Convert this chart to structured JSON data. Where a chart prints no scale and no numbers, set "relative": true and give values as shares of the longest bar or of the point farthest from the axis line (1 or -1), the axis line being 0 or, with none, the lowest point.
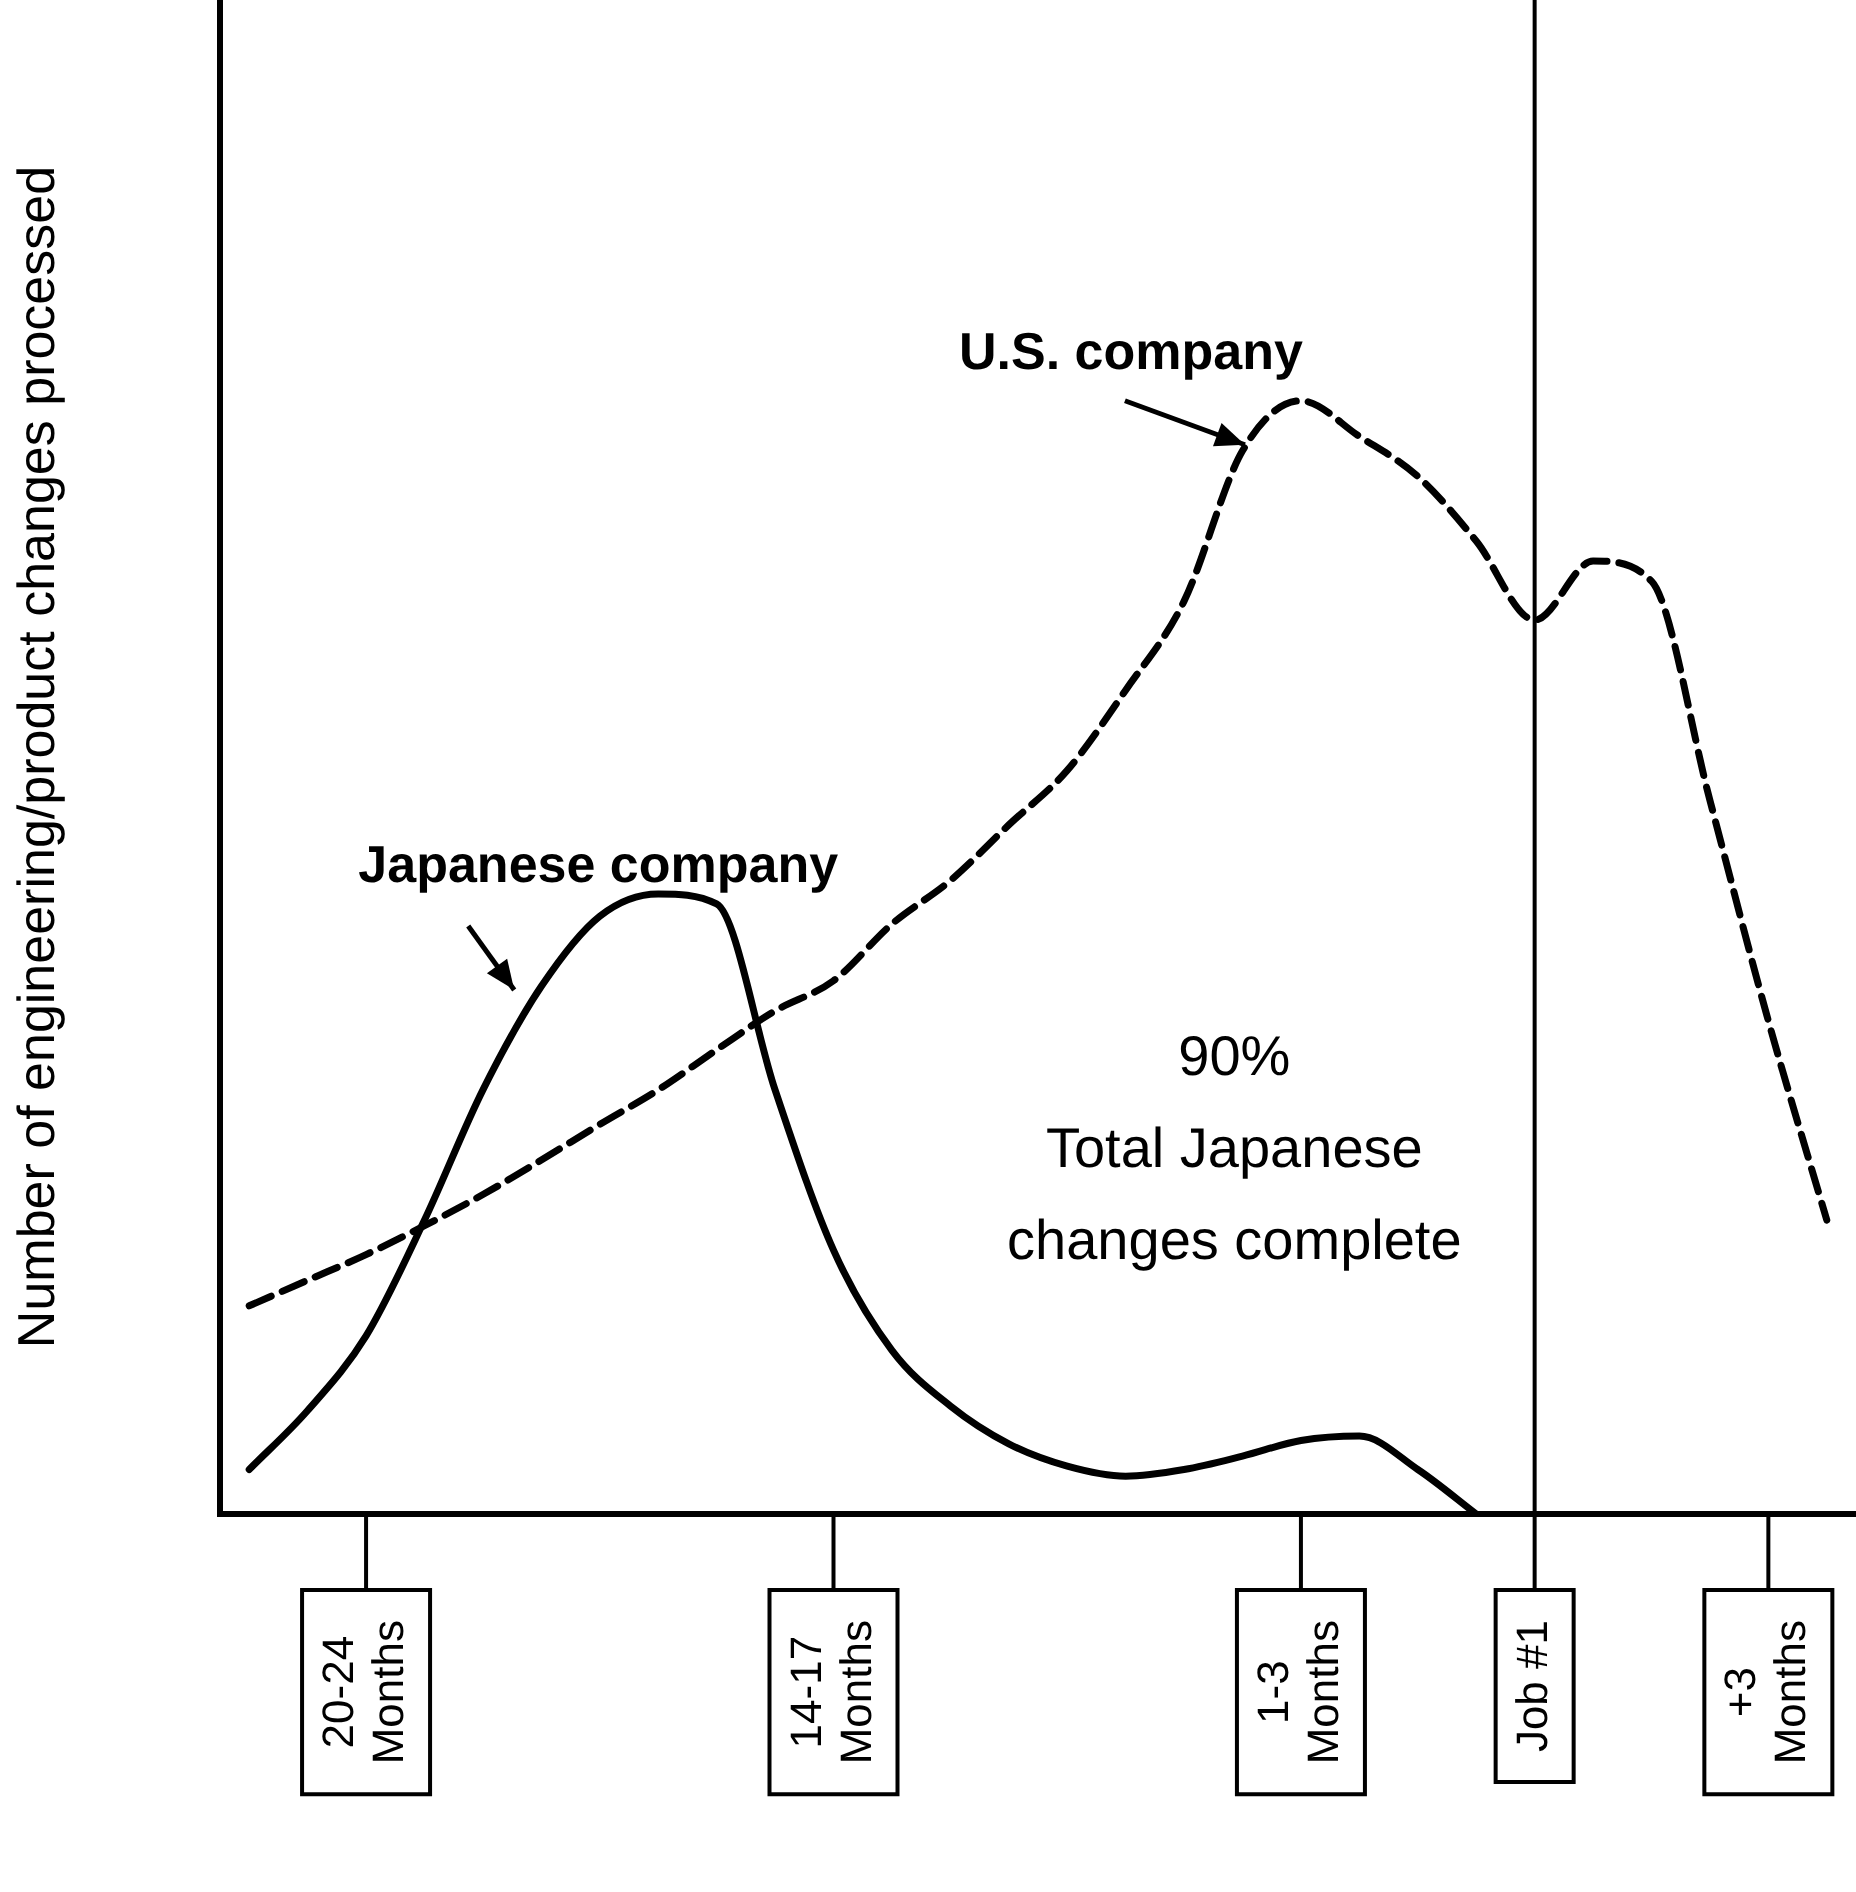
{
  "chart_data": {
    "type": "line",
    "relative": true,
    "ylabel": "Number of engineering/product changes processed",
    "categories": [
      null,
      null,
      "20-24 Months",
      null,
      null,
      null,
      null,
      null,
      null,
      null,
      "14-17 Months",
      null,
      null,
      null,
      null,
      null,
      null,
      null,
      "1-3 Months",
      null,
      null,
      null,
      "Job #1",
      null,
      null,
      null,
      "+3 Months",
      null
    ],
    "grid": false,
    "legend": false,
    "marker": "none",
    "series": [
      {
        "name": "Japanese company",
        "color": "#000000",
        "line_style": "solid",
        "values": [
          0.04,
          0.093,
          0.16,
          0.264,
          0.381,
          0.474,
          0.537,
          0.557,
          0.548,
          0.381,
          0.237,
          0.147,
          0.097,
          0.063,
          0.043,
          0.034,
          0.04,
          0.052,
          0.066,
          0.07,
          0.04,
          0,
          null,
          null,
          null,
          null,
          null,
          null
        ]
      },
      {
        "name": "U.S. company",
        "color": "#000000",
        "line_style": "dashed",
        "values": [
          0.187,
          0.21,
          0.233,
          0.259,
          0.287,
          0.318,
          0.35,
          0.381,
          0.417,
          0.452,
          0.479,
          0.53,
          0.569,
          0.619,
          0.668,
          0.74,
          0.82,
          0.955,
          1,
          0.968,
          0.932,
          0.874,
          0.803,
          0.856,
          0.838,
          0.641,
          0.443,
          0.264
        ]
      }
    ],
    "ref_lines": [
      {
        "axis": "x",
        "value": "Job #1",
        "label": null,
        "color": "#000000"
      }
    ],
    "annotations": [
      "90%\nTotal Japanese\nchanges complete"
    ]
  }
}
